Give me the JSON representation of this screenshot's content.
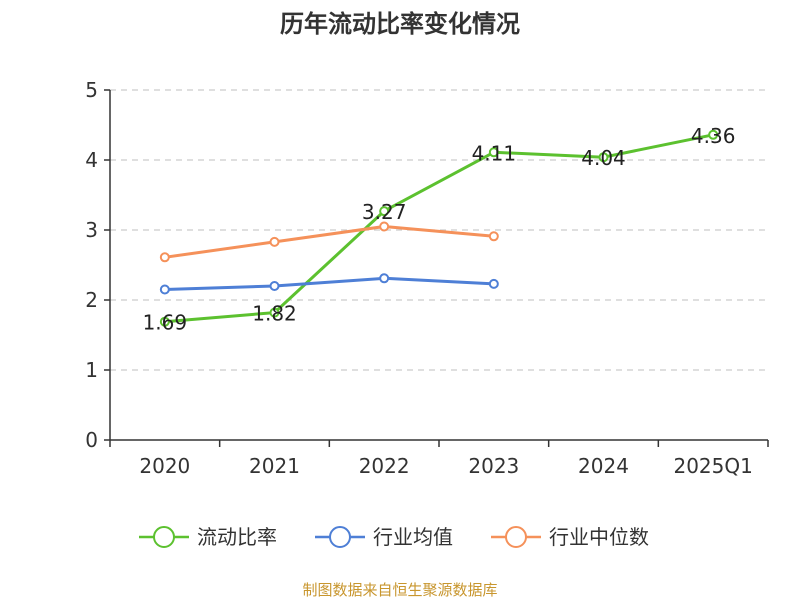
{
  "chart_data": {
    "type": "line",
    "title": "历年流动比率变化情况",
    "categories": [
      "2020",
      "2021",
      "2022",
      "2023",
      "2024",
      "2025Q1"
    ],
    "ylim": [
      0,
      5
    ],
    "yticks": [
      0,
      1,
      2,
      3,
      4,
      5
    ],
    "grid": true,
    "legend_position": "bottom",
    "series": [
      {
        "name": "流动比率",
        "color": "#5cc12f",
        "values": [
          1.69,
          1.82,
          3.27,
          4.11,
          4.04,
          4.36
        ],
        "labels": [
          "1.69",
          "1.82",
          "3.27",
          "4.11",
          "4.04",
          "4.36"
        ],
        "show_labels": true
      },
      {
        "name": "行业均值",
        "color": "#4e7fd6",
        "values": [
          2.15,
          2.2,
          2.31,
          2.23,
          null,
          null
        ],
        "show_labels": false
      },
      {
        "name": "行业中位数",
        "color": "#f5915a",
        "values": [
          2.61,
          2.83,
          3.05,
          2.91,
          null,
          null
        ],
        "show_labels": false
      }
    ],
    "source": "制图数据来自恒生聚源数据库"
  }
}
